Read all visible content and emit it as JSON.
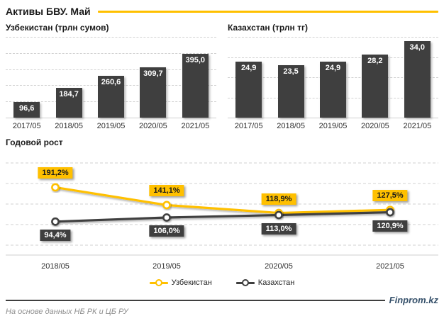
{
  "header": {
    "title": "Активы БВУ. Май"
  },
  "colors": {
    "accent": "#FFC000",
    "dark": "#3F3F3F",
    "gridline": "#D2D2D2",
    "baseline": "#CFCFCF",
    "brand_text": "#35506A"
  },
  "chart_data": [
    {
      "type": "bar",
      "title": "Узбекистан (трлн сумов)",
      "categories": [
        "2017/05",
        "2018/05",
        "2019/05",
        "2020/05",
        "2021/05"
      ],
      "values": [
        96.6,
        184.7,
        260.6,
        309.7,
        395.0
      ],
      "labels": [
        "96,6",
        "184,7",
        "260,6",
        "309,7",
        "395,0"
      ],
      "ylim": [
        0,
        500
      ],
      "grid_intervals": 5,
      "bar_color": "#3F3F3F",
      "grid": "dashed"
    },
    {
      "type": "bar",
      "title": "Казахстан (трлн тг)",
      "categories": [
        "2017/05",
        "2018/05",
        "2019/05",
        "2020/05",
        "2021/05"
      ],
      "values": [
        24.9,
        23.5,
        24.9,
        28.2,
        34.0
      ],
      "labels": [
        "24,9",
        "23,5",
        "24,9",
        "28,2",
        "34,0"
      ],
      "ylim": [
        0,
        36
      ],
      "grid_intervals": 4,
      "bar_color": "#3F3F3F",
      "grid": "dashed"
    },
    {
      "type": "line",
      "title": "Годовой рост",
      "categories": [
        "2018/05",
        "2019/05",
        "2020/05",
        "2021/05"
      ],
      "series": [
        {
          "name": "Узбекистан",
          "color": "#FFC000",
          "values": [
            191.2,
            141.1,
            118.9,
            127.5
          ],
          "labels": [
            "191,2%",
            "141,1%",
            "118,9%",
            "127,5%"
          ],
          "label_position": "above",
          "label_text_color": "#1a1a1a"
        },
        {
          "name": "Казахстан",
          "color": "#3F3F3F",
          "values": [
            94.4,
            106.0,
            113.0,
            120.9
          ],
          "labels": [
            "94,4%",
            "106,0%",
            "113,0%",
            "120,9%"
          ],
          "label_position": "below",
          "label_text_color": "#ffffff"
        }
      ],
      "ylim": [
        0,
        292
      ],
      "grid": "dashed",
      "legend_position": "bottom"
    }
  ],
  "footer": {
    "source": "На основе данных НБ РК и ЦБ РУ",
    "brand": "Finprom.kz"
  }
}
